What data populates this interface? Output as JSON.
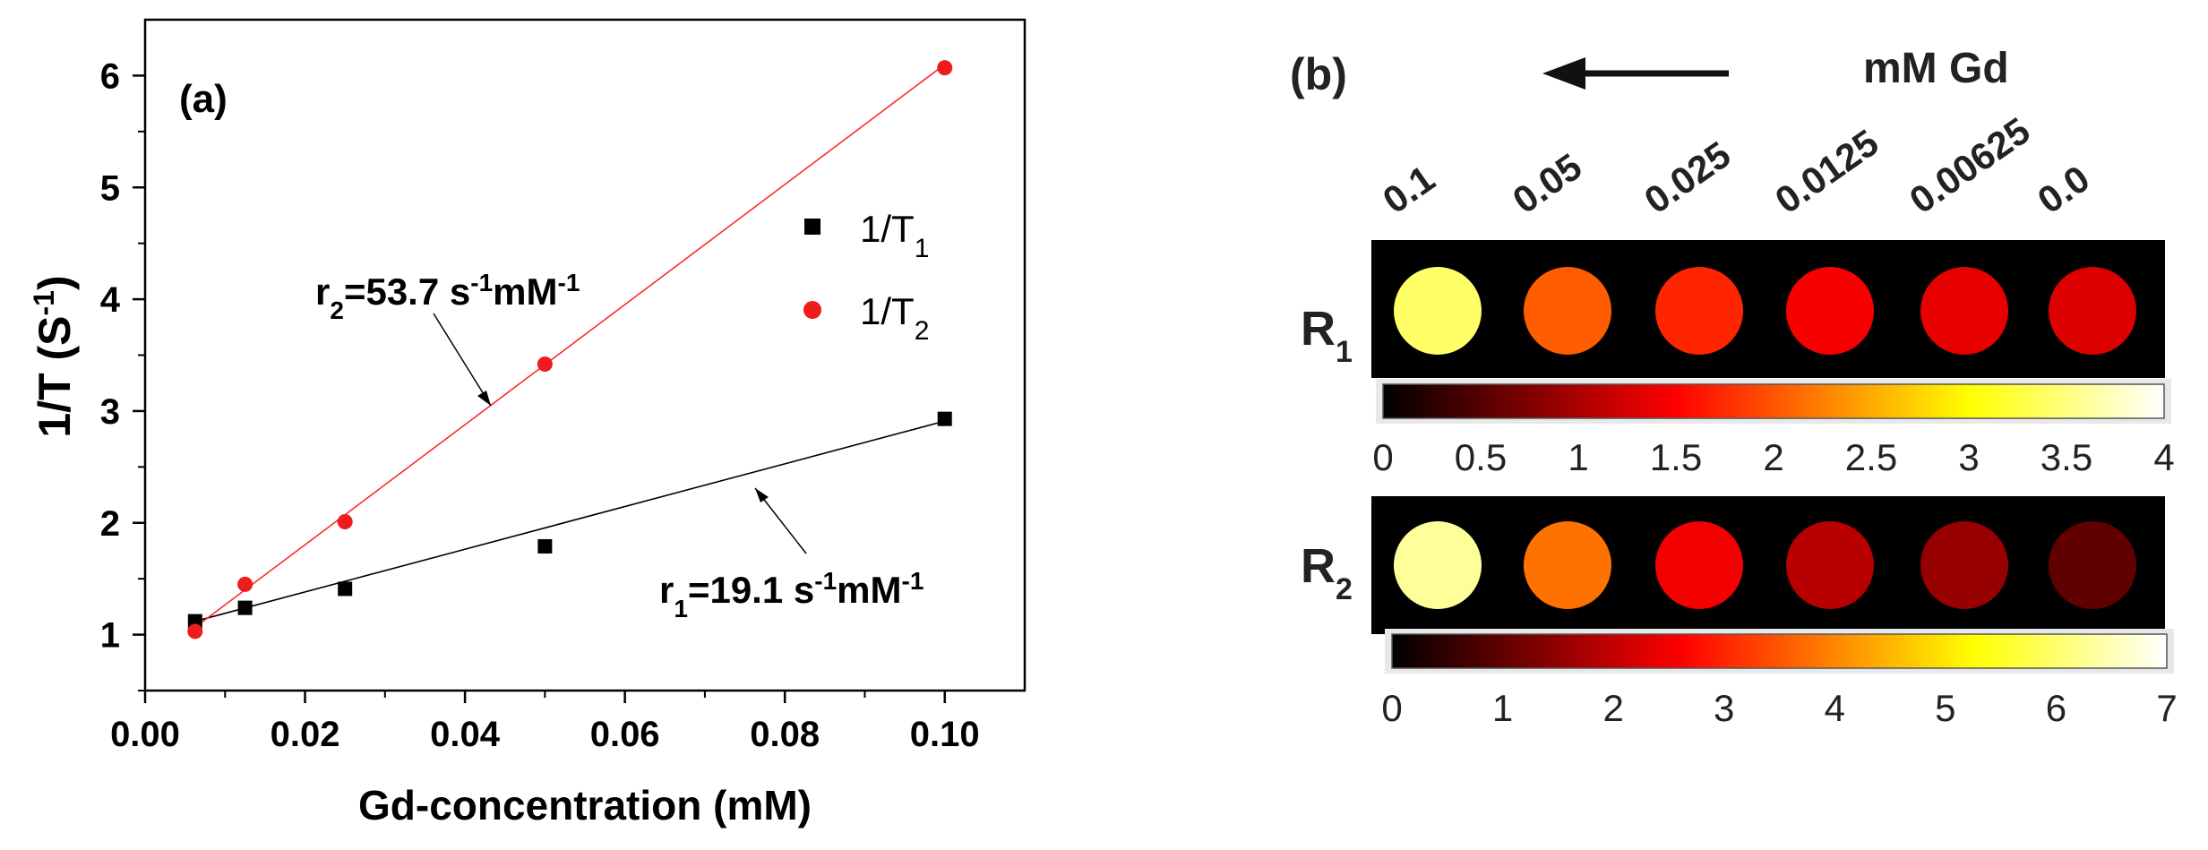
{
  "chart_data": [
    {
      "type": "scatter",
      "panel_label": "(a)",
      "xlabel": "Gd-concentration (mM)",
      "ylabel": "1/T (S",
      "ylabel_sup": "-1",
      "ylabel_end": ")",
      "xlim": [
        0.0,
        0.11
      ],
      "ylim": [
        0.5,
        6.5
      ],
      "xticks": [
        "0.00",
        "0.02",
        "0.04",
        "0.06",
        "0.08",
        "0.10"
      ],
      "xtick_values": [
        0.0,
        0.02,
        0.04,
        0.06,
        0.08,
        0.1
      ],
      "yticks": [
        "1",
        "2",
        "3",
        "4",
        "5",
        "6"
      ],
      "ytick_values": [
        1,
        2,
        3,
        4,
        5,
        6
      ],
      "legend": {
        "position": "upper-right",
        "entries": [
          {
            "main": "1/T",
            "sub": "1",
            "marker": "square",
            "color": "#000000"
          },
          {
            "main": "1/T",
            "sub": "2",
            "marker": "circle",
            "color": "#ee1c1c"
          }
        ]
      },
      "series": [
        {
          "name": "1/T1",
          "marker": "square",
          "color": "#000000",
          "x": [
            0.00625,
            0.0125,
            0.025,
            0.05,
            0.1
          ],
          "y": [
            1.12,
            1.24,
            1.41,
            1.79,
            2.93
          ],
          "fit": {
            "slope": 19.1,
            "intercept": 1.0,
            "x_range": [
              0.00625,
              0.1
            ]
          }
        },
        {
          "name": "1/T2",
          "marker": "circle",
          "color": "#ee1c1c",
          "x": [
            0.00625,
            0.0125,
            0.025,
            0.05,
            0.1
          ],
          "y": [
            1.03,
            1.45,
            2.01,
            3.42,
            6.07
          ],
          "fit": {
            "slope": 53.7,
            "intercept": 0.73,
            "x_range": [
              0.00625,
              0.1
            ]
          }
        }
      ],
      "annotations": [
        {
          "id": "r2",
          "r": "r",
          "sub": "2",
          "text": "=53.7 s",
          "sup1": "-1",
          "mid": "mM",
          "sup2": "-1"
        },
        {
          "id": "r1",
          "r": "r",
          "sub": "1",
          "text": "=19.1 s",
          "sup1": "-1",
          "mid": "mM",
          "sup2": "-1"
        }
      ]
    },
    {
      "type": "heatmap",
      "panel_label": "(b)",
      "unit_label": "mM Gd",
      "concentrations": [
        "0.1",
        "0.05",
        "0.025",
        "0.0125",
        "0.00625",
        "0.0"
      ],
      "rows": [
        {
          "label": "R",
          "sub": "1",
          "values": [
            3.4,
            2.05,
            1.72,
            1.45,
            1.35,
            1.3
          ],
          "colorbar_ticks": [
            "0",
            "0.5",
            "1",
            "1.5",
            "2",
            "2.5",
            "3",
            "3.5",
            "4"
          ],
          "colorbar_values": [
            0,
            0.5,
            1,
            1.5,
            2,
            2.5,
            3,
            3.5,
            4
          ],
          "range": [
            0,
            4
          ]
        },
        {
          "label": "R",
          "sub": "2",
          "values": [
            6.3,
            3.8,
            2.5,
            1.9,
            1.55,
            1.0
          ],
          "colorbar_ticks": [
            "0",
            "1",
            "2",
            "3",
            "4",
            "5",
            "6",
            "7"
          ],
          "colorbar_values": [
            0,
            1,
            2,
            3,
            4,
            5,
            6,
            7
          ],
          "range": [
            0,
            7
          ]
        }
      ]
    }
  ],
  "colors": {
    "t1": "#000000",
    "t2": "#ee1c1c",
    "fit_t2": "#ff2a2a",
    "fit_t1": "#000000"
  }
}
